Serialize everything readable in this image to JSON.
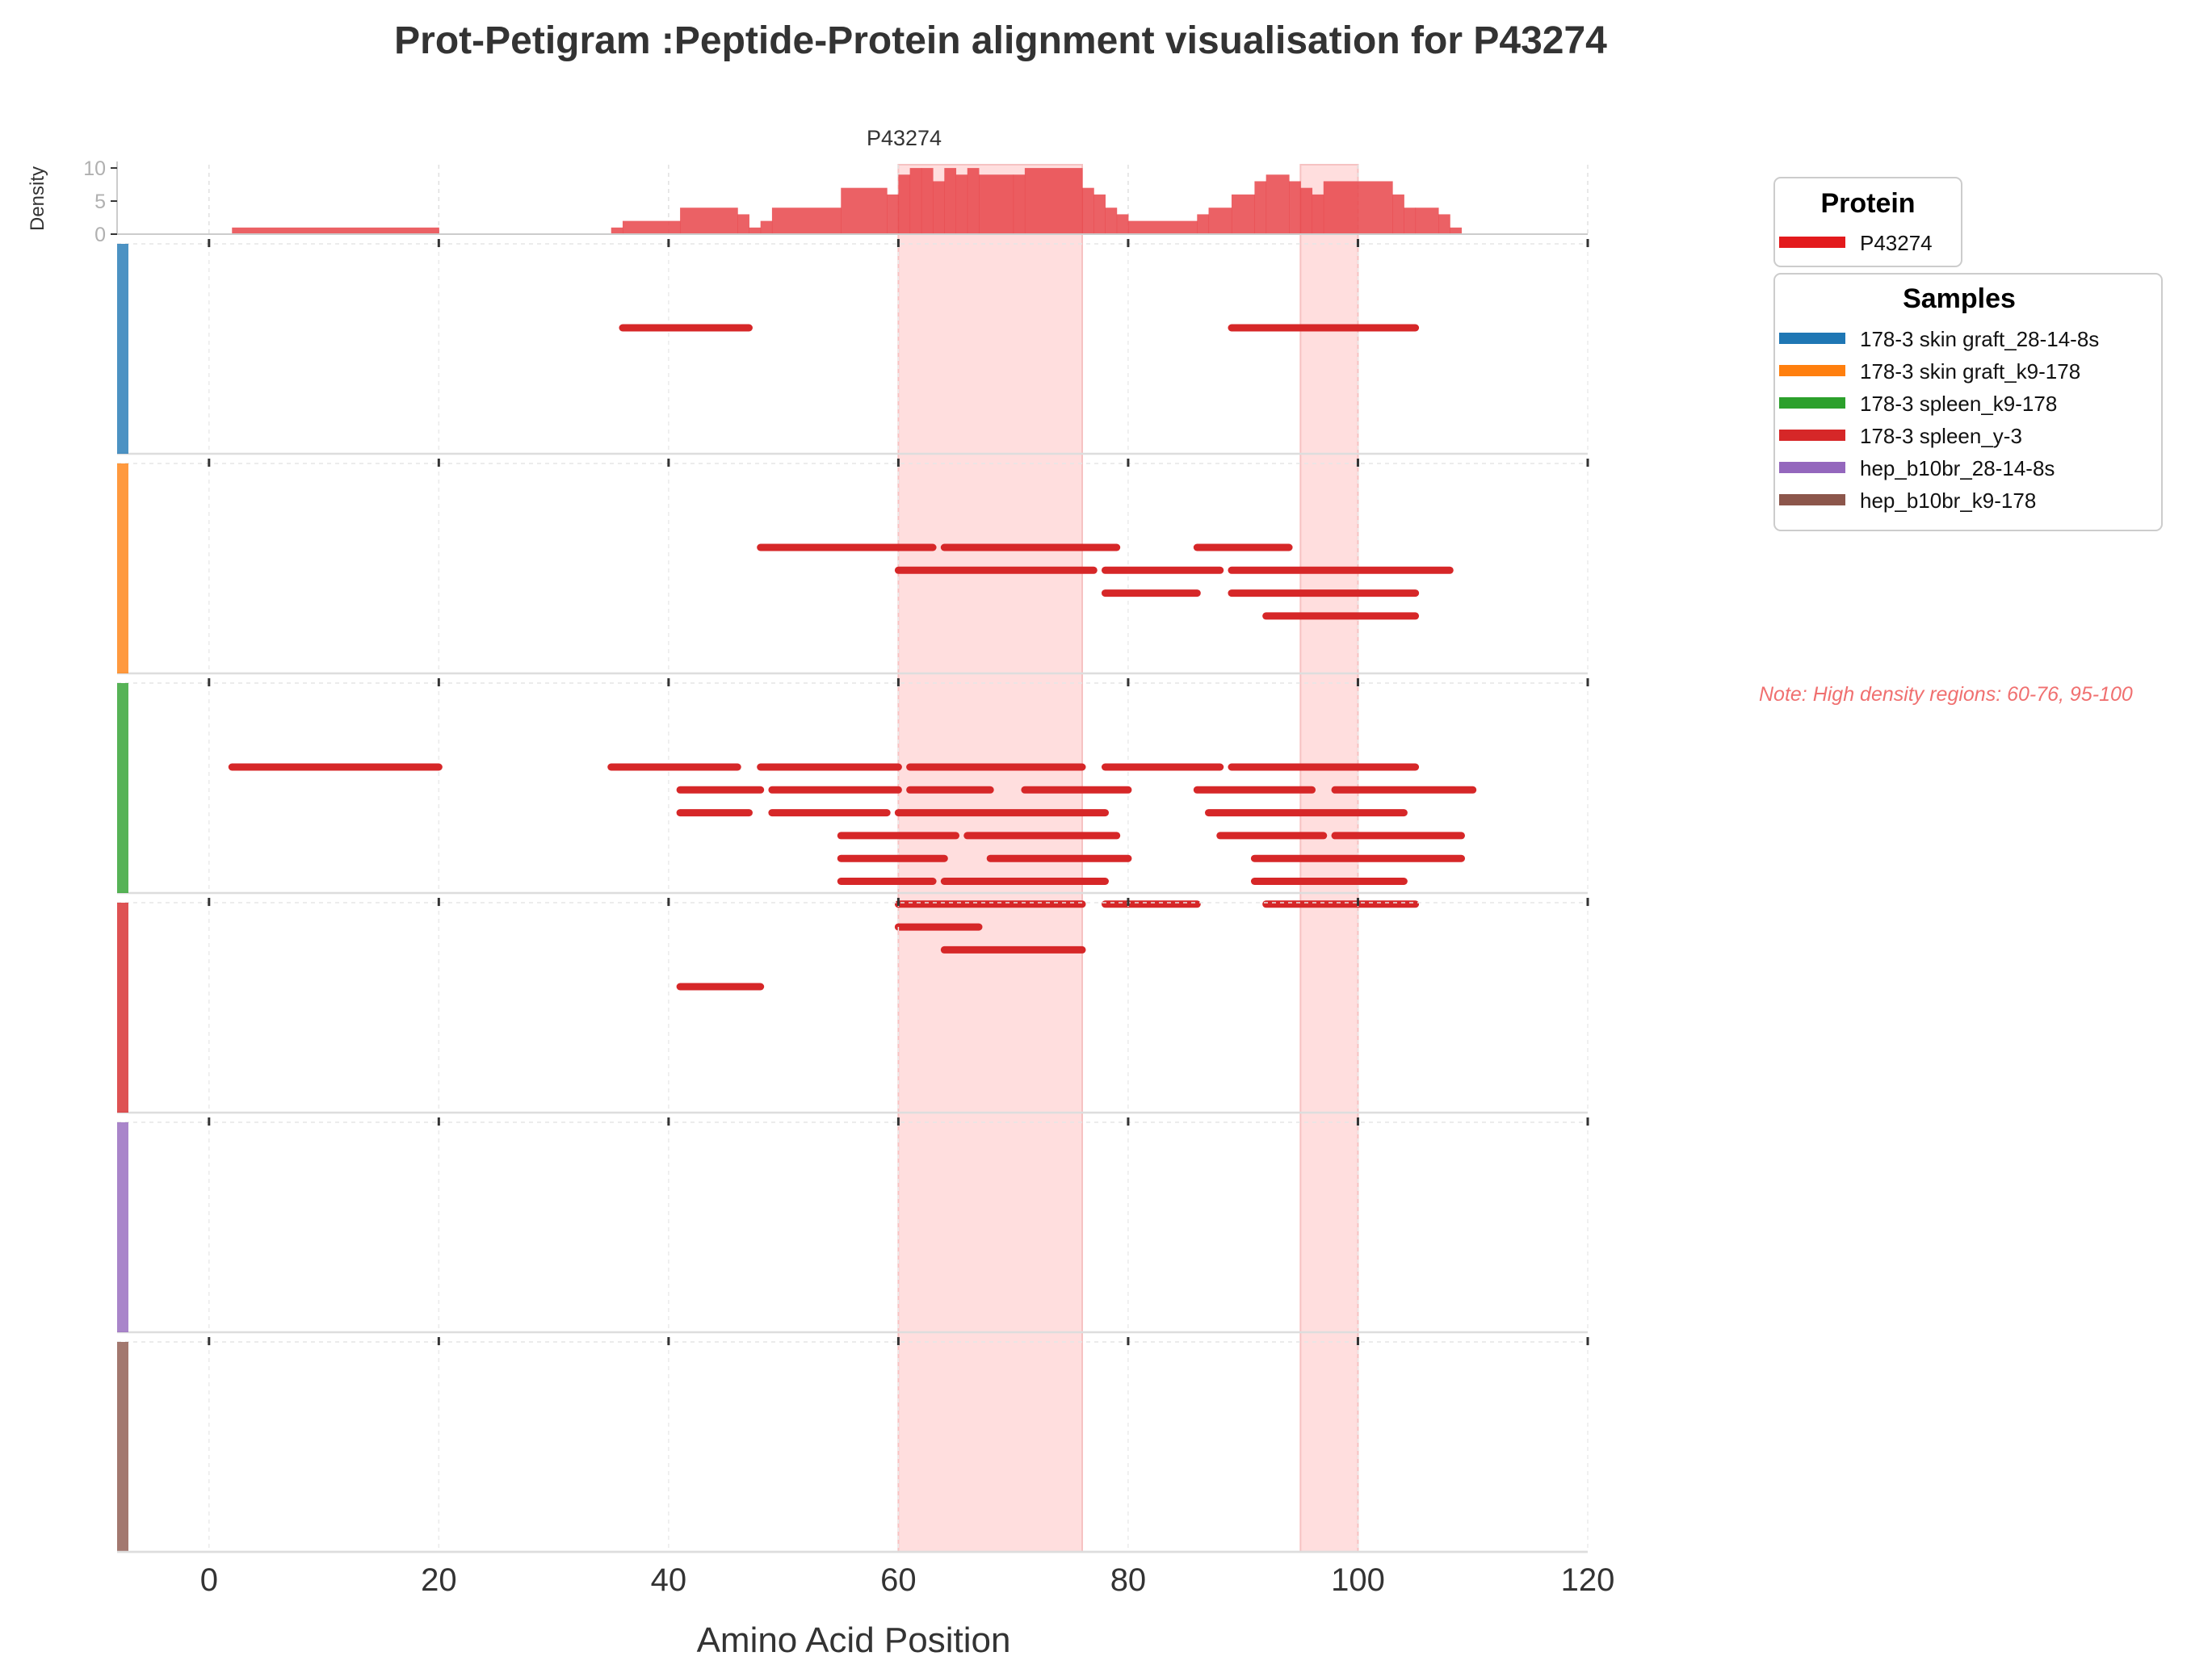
{
  "chart_data": {
    "type": "petigram",
    "title": "Prot-Petigram :Peptide-Protein alignment visualisation for P43274",
    "protein_label": "P43274",
    "xlabel": "Amino Acid Position",
    "density_ylabel": "Density",
    "xlim": [
      -8,
      120
    ],
    "x_ticks": [
      0,
      20,
      40,
      60,
      80,
      100,
      120
    ],
    "density_ylim": [
      0,
      10.5
    ],
    "density_ticks": [
      0,
      5,
      10
    ],
    "highlight_regions": [
      [
        60,
        76
      ],
      [
        95,
        100
      ]
    ],
    "note": "Note: High density regions: 60-76, 95-100",
    "colors": {
      "protein": "#e31a1c",
      "peptide": "#d62728",
      "density_fill": "#e8454a",
      "highlight": "#ffd9d9"
    },
    "density": [
      [
        2,
        20,
        1
      ],
      [
        35,
        36,
        1
      ],
      [
        36,
        41,
        2
      ],
      [
        41,
        46,
        4
      ],
      [
        46,
        47,
        3
      ],
      [
        47,
        48,
        1
      ],
      [
        48,
        49,
        2
      ],
      [
        49,
        55,
        4
      ],
      [
        55,
        59,
        7
      ],
      [
        59,
        60,
        6
      ],
      [
        60,
        61,
        9
      ],
      [
        61,
        62,
        10
      ],
      [
        62,
        63,
        10
      ],
      [
        63,
        64,
        8
      ],
      [
        64,
        65,
        10
      ],
      [
        65,
        66,
        9
      ],
      [
        66,
        67,
        10
      ],
      [
        67,
        70,
        9
      ],
      [
        70,
        71,
        9
      ],
      [
        71,
        76,
        10
      ],
      [
        76,
        77,
        7
      ],
      [
        77,
        78,
        6
      ],
      [
        78,
        79,
        4
      ],
      [
        79,
        80,
        3
      ],
      [
        80,
        86,
        2
      ],
      [
        86,
        87,
        3
      ],
      [
        87,
        89,
        4
      ],
      [
        89,
        91,
        6
      ],
      [
        91,
        92,
        8
      ],
      [
        92,
        94,
        9
      ],
      [
        94,
        95,
        8
      ],
      [
        95,
        96,
        7
      ],
      [
        96,
        97,
        6
      ],
      [
        97,
        103,
        8
      ],
      [
        103,
        104,
        6
      ],
      [
        104,
        105,
        4
      ],
      [
        105,
        107,
        4
      ],
      [
        107,
        108,
        3
      ],
      [
        108,
        109,
        1
      ]
    ],
    "legend": {
      "protein_title": "Protein",
      "protein_entries": [
        {
          "name": "P43274",
          "color": "#e31a1c"
        }
      ],
      "samples_title": "Samples",
      "sample_entries": [
        {
          "name": "178-3 skin graft_28-14-8s",
          "color": "#1f77b4"
        },
        {
          "name": "178-3 skin graft_k9-178",
          "color": "#ff7f0e"
        },
        {
          "name": "178-3 spleen_k9-178",
          "color": "#2ca02c"
        },
        {
          "name": "178-3 spleen_y-3",
          "color": "#d62728"
        },
        {
          "name": "hep_b10br_28-14-8s",
          "color": "#9467bd"
        },
        {
          "name": "hep_b10br_k9-178",
          "color": "#8c564b"
        }
      ]
    },
    "samples": [
      {
        "name": "178-3 skin graft_28-14-8s",
        "color": "#1f77b4",
        "peptides": [
          [
            36,
            47,
            0
          ],
          [
            89,
            105,
            0
          ]
        ]
      },
      {
        "name": "178-3 skin graft_k9-178",
        "color": "#ff7f0e",
        "peptides": [
          [
            48,
            63,
            0
          ],
          [
            64,
            79,
            0
          ],
          [
            86,
            94,
            0
          ],
          [
            60,
            77,
            1
          ],
          [
            78,
            88,
            1
          ],
          [
            89,
            108,
            1
          ],
          [
            78,
            86,
            2
          ],
          [
            89,
            105,
            2
          ],
          [
            92,
            105,
            3
          ]
        ]
      },
      {
        "name": "178-3 spleen_k9-178",
        "color": "#2ca02c",
        "peptides": [
          [
            2,
            20,
            0
          ],
          [
            35,
            46,
            0
          ],
          [
            48,
            60,
            0
          ],
          [
            61,
            76,
            0
          ],
          [
            78,
            88,
            0
          ],
          [
            89,
            105,
            0
          ],
          [
            41,
            48,
            1
          ],
          [
            49,
            60,
            1
          ],
          [
            61,
            68,
            1
          ],
          [
            71,
            80,
            1
          ],
          [
            86,
            96,
            1
          ],
          [
            98,
            110,
            1
          ],
          [
            41,
            47,
            2
          ],
          [
            49,
            59,
            2
          ],
          [
            60,
            78,
            2
          ],
          [
            87,
            104,
            2
          ],
          [
            55,
            65,
            3
          ],
          [
            66,
            79,
            3
          ],
          [
            88,
            97,
            3
          ],
          [
            98,
            109,
            3
          ],
          [
            55,
            64,
            4
          ],
          [
            68,
            80,
            4
          ],
          [
            91,
            109,
            4
          ],
          [
            55,
            63,
            5
          ],
          [
            64,
            78,
            5
          ],
          [
            91,
            104,
            5
          ],
          [
            60,
            76,
            6
          ],
          [
            78,
            86,
            6
          ],
          [
            92,
            105,
            6
          ],
          [
            60,
            67,
            7
          ],
          [
            64,
            76,
            8
          ]
        ]
      },
      {
        "name": "178-3 spleen_y-3",
        "color": "#d62728",
        "peptides": [
          [
            41,
            48,
            0
          ]
        ]
      },
      {
        "name": "hep_b10br_28-14-8s",
        "color": "#9467bd",
        "peptides": []
      },
      {
        "name": "hep_b10br_k9-178",
        "color": "#8c564b",
        "peptides": []
      }
    ]
  }
}
